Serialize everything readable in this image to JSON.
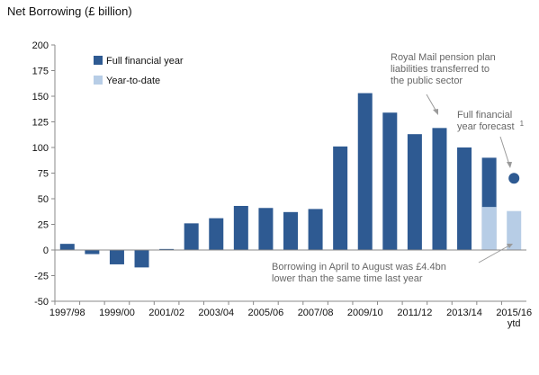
{
  "chart_data": {
    "type": "bar",
    "title": "",
    "ylabel": "Net Borrowing (£ billion)",
    "xlabel": "",
    "ylim": [
      -50,
      200
    ],
    "yticks": [
      -50,
      -25,
      0,
      25,
      50,
      75,
      100,
      125,
      150,
      175,
      200
    ],
    "grid": false,
    "legend_position": "top-left",
    "categories": [
      "1997/98",
      "1998/99",
      "1999/00",
      "2000/01",
      "2001/02",
      "2002/03",
      "2003/04",
      "2004/05",
      "2005/06",
      "2006/07",
      "2007/08",
      "2008/09",
      "2009/10",
      "2010/11",
      "2011/12",
      "2012/13",
      "2013/14",
      "2014/15",
      "2015/16"
    ],
    "tick_labels": [
      "1997/98",
      "",
      "1999/00",
      "",
      "2001/02",
      "",
      "2003/04",
      "",
      "2005/06",
      "",
      "2007/08",
      "",
      "2009/10",
      "",
      "2011/12",
      "",
      "2013/14",
      "",
      "2015/16"
    ],
    "tick_sublabel_last": "ytd",
    "series": [
      {
        "name": "Full financial year",
        "color": "#2e5a92",
        "values": [
          6,
          -4,
          -14,
          -17,
          1,
          26,
          31,
          43,
          41,
          37,
          40,
          101,
          153,
          134,
          113,
          119,
          100,
          90,
          null
        ]
      },
      {
        "name": "Year-to-date",
        "color": "#b7cde6",
        "values": [
          null,
          null,
          null,
          null,
          null,
          null,
          null,
          null,
          null,
          null,
          null,
          null,
          null,
          null,
          null,
          null,
          null,
          42,
          38
        ]
      }
    ],
    "forecast": {
      "category": "2015/16",
      "value": 70,
      "color": "#2e5a92"
    },
    "annotations": [
      {
        "id": "royal-mail",
        "lines": [
          "Royal Mail pension plan",
          "liabilities transferred to",
          "the public sector"
        ]
      },
      {
        "id": "forecast",
        "lines": [
          "Full financial",
          "year forecast"
        ],
        "superscript": "1"
      },
      {
        "id": "borrowing",
        "lines": [
          "Borrowing in April to August was £4.4bn",
          "lower than the same time last year"
        ]
      }
    ]
  }
}
